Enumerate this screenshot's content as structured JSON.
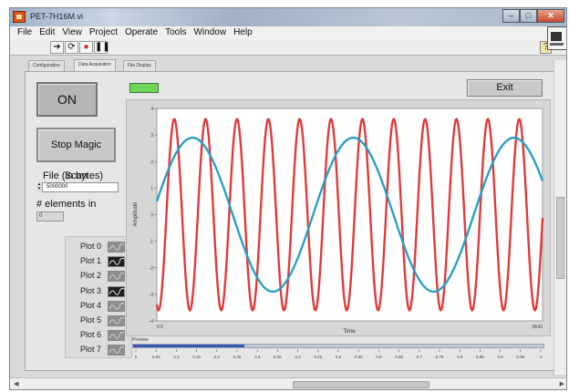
{
  "window": {
    "title": "PET-7H16M.vi"
  },
  "menu": [
    "File",
    "Edit",
    "View",
    "Project",
    "Operate",
    "Tools",
    "Window",
    "Help"
  ],
  "toolbar": {
    "help_glyph": "?"
  },
  "tabs": [
    {
      "label": "Configuration",
      "active": false
    },
    {
      "label": "Data Acquisition",
      "active": true
    },
    {
      "label": "File Display",
      "active": false
    }
  ],
  "controls": {
    "on_label": "ON",
    "stop_label": "Stop Magic Scan",
    "file_label": "File (in bytes)",
    "file_value": "5000000",
    "queue_label": "# elements in queue",
    "queue_value": "0",
    "exit_label": "Exit",
    "led_color": "#6fd65a"
  },
  "legend": [
    {
      "name": "Plot 0",
      "dark": false
    },
    {
      "name": "Plot 1",
      "dark": true
    },
    {
      "name": "Plot 2",
      "dark": false
    },
    {
      "name": "Plot 3",
      "dark": true
    },
    {
      "name": "Plot 4",
      "dark": false
    },
    {
      "name": "Plot 5",
      "dark": false
    },
    {
      "name": "Plot 6",
      "dark": false
    },
    {
      "name": "Plot 7",
      "dark": false
    }
  ],
  "chart_data": {
    "type": "line",
    "title": "",
    "xlabel": "Time",
    "ylabel": "Amplitude",
    "xlim": [
      0,
      8643
    ],
    "ylim": [
      -4,
      4
    ],
    "x_tick_labels": [
      "0.5",
      "8643"
    ],
    "y_ticks": [
      "4",
      "3",
      "2",
      "1",
      "0",
      "-1",
      "-2",
      "-3",
      "-4"
    ],
    "series": [
      {
        "color": "#e03b3b",
        "waveform": "sine",
        "amplitude": 3.6,
        "cycles": 12.3,
        "phase_deg": 250
      },
      {
        "color": "#2a9fc6",
        "waveform": "sine",
        "amplitude": 2.9,
        "cycles": 2.4,
        "phase_deg": 10
      }
    ]
  },
  "preview": {
    "label": "Preview",
    "progress_fraction": 0.27,
    "scale": [
      "0",
      "0.05",
      "0.1",
      "0.15",
      "0.2",
      "0.25",
      "0.3",
      "0.35",
      "0.4",
      "0.45",
      "0.5",
      "0.55",
      "0.6",
      "0.65",
      "0.7",
      "0.75",
      "0.8",
      "0.85",
      "0.9",
      "0.95",
      "1"
    ]
  }
}
